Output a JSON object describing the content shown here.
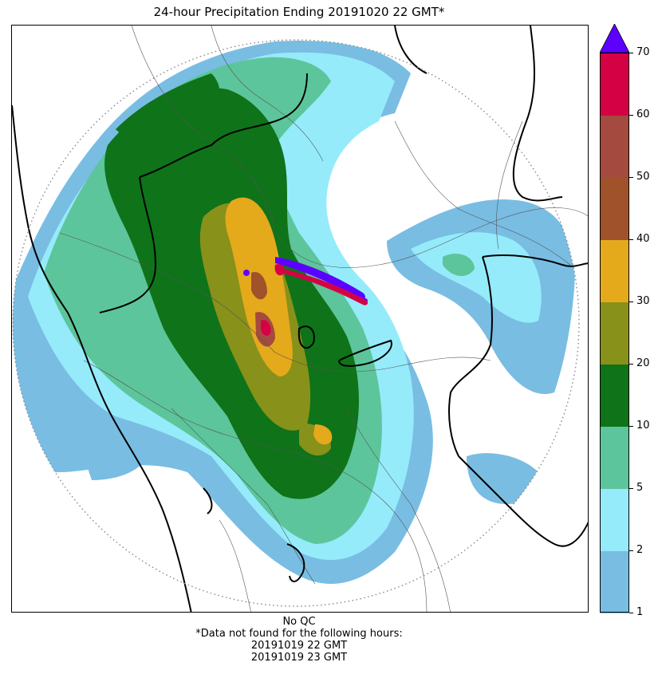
{
  "title": "24-hour Precipitation Ending 20191020 22 GMT*",
  "colorbar": {
    "ticks": [
      "1",
      "2",
      "5",
      "10",
      "20",
      "30",
      "40",
      "50",
      "60",
      "70"
    ],
    "bins": [
      {
        "from": "1",
        "to": "2",
        "color": "#79bde3"
      },
      {
        "from": "2",
        "to": "5",
        "color": "#95ebfa"
      },
      {
        "from": "5",
        "to": "10",
        "color": "#5dc59b"
      },
      {
        "from": "10",
        "to": "20",
        "color": "#0f7319"
      },
      {
        "from": "20",
        "to": "30",
        "color": "#889119"
      },
      {
        "from": "30",
        "to": "40",
        "color": "#e5a91c"
      },
      {
        "from": "40",
        "to": "50",
        "color": "#a0522a"
      },
      {
        "from": "50",
        "to": "60",
        "color": "#a54a3f"
      },
      {
        "from": "60",
        "to": "70",
        "color": "#d50145"
      }
    ],
    "over_color": "#5c00ff"
  },
  "footer": {
    "line1": "No QC",
    "line2": "*Data not found for the following hours:",
    "line3": "20191019 22 GMT",
    "line4": "20191019 23 GMT"
  },
  "map": {
    "radar_range": "dotted circle",
    "boundaries": [
      "coastline",
      "state borders",
      "district borders"
    ]
  }
}
